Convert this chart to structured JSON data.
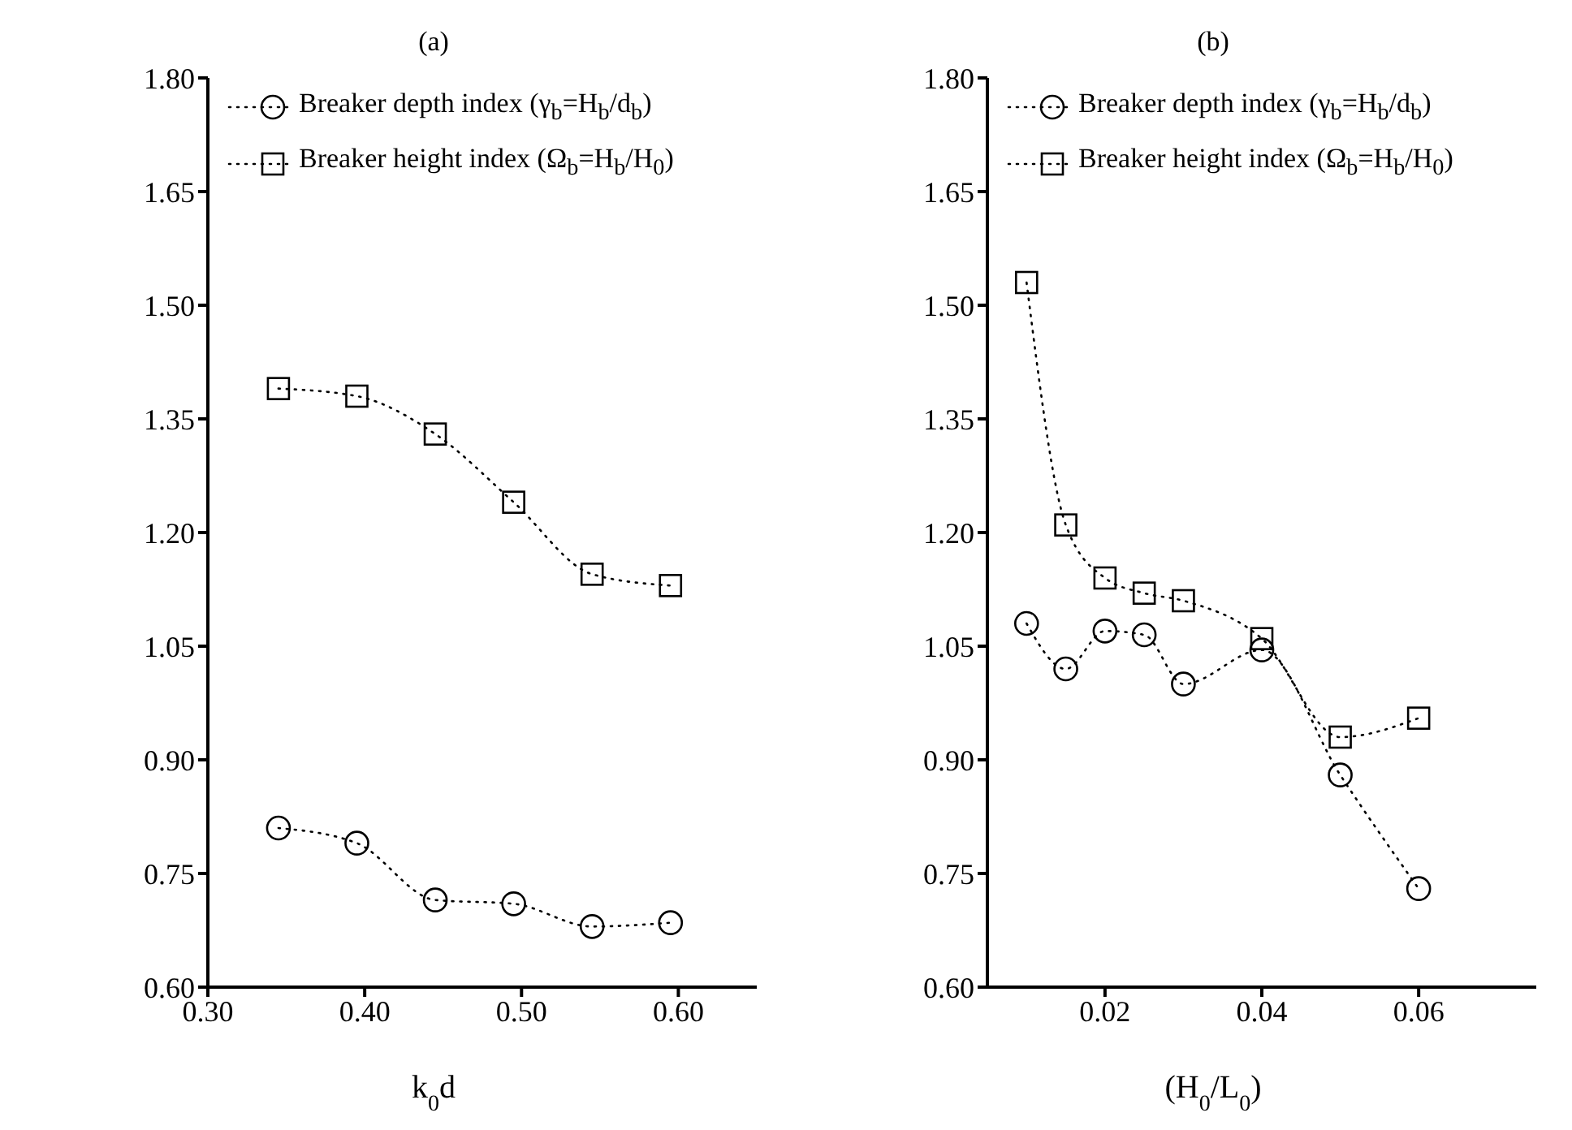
{
  "chart_data": [
    {
      "type": "line",
      "title": "(a)",
      "xlabel": "k$_{0}$d",
      "x": [
        0.345,
        0.395,
        0.445,
        0.495,
        0.545,
        0.595
      ],
      "series": [
        {
          "name": "Breaker depth index (γ$_{b}$=H$_{b}$/d$_{b}$)",
          "color": "#000000",
          "marker": "circle",
          "values": [
            0.81,
            0.79,
            0.715,
            0.71,
            0.68,
            0.685
          ]
        },
        {
          "name": "Breaker height index (Ω$_{b}$=H$_{b}$/H$_{0}$)",
          "color": "#000000",
          "marker": "square",
          "values": [
            1.39,
            1.38,
            1.33,
            1.24,
            1.145,
            1.13
          ]
        }
      ],
      "xlim": [
        0.3,
        0.65
      ],
      "xticks": [
        {
          "value": 0.3,
          "label": "0.30"
        },
        {
          "value": 0.4,
          "label": "0.40"
        },
        {
          "value": 0.5,
          "label": "0.50"
        },
        {
          "value": 0.6,
          "label": "0.60"
        }
      ],
      "ylim": [
        0.6,
        1.8
      ],
      "yticks": [
        {
          "value": 0.6,
          "label": "0.60"
        },
        {
          "value": 0.75,
          "label": "0.75"
        },
        {
          "value": 0.9,
          "label": "0.90"
        },
        {
          "value": 1.05,
          "label": "1.05"
        },
        {
          "value": 1.2,
          "label": "1.20"
        },
        {
          "value": 1.35,
          "label": "1.35"
        },
        {
          "value": 1.5,
          "label": "1.50"
        },
        {
          "value": 1.65,
          "label": "1.65"
        },
        {
          "value": 1.8,
          "label": "1.80"
        }
      ],
      "legend": "top",
      "line_style": "dotted"
    },
    {
      "type": "line",
      "title": "(b)",
      "xlabel": "(H$_{0}$/L$_{0}$)",
      "x": [
        0.01,
        0.015,
        0.02,
        0.025,
        0.03,
        0.04,
        0.05,
        0.06
      ],
      "series": [
        {
          "name": "Breaker depth index (γ$_{b}$=H$_{b}$/d$_{b}$)",
          "color": "#000000",
          "marker": "circle",
          "values": [
            1.08,
            1.02,
            1.07,
            1.065,
            1.0,
            1.045,
            0.88,
            0.73
          ]
        },
        {
          "name": "Breaker height index (Ω$_{b}$=H$_{b}$/H$_{0}$)",
          "color": "#000000",
          "marker": "square",
          "values": [
            1.53,
            1.21,
            1.14,
            1.12,
            1.11,
            1.06,
            0.93,
            0.955
          ]
        }
      ],
      "xlim": [
        0.005,
        0.075
      ],
      "xticks": [
        0.02,
        0.04,
        0.06
      ],
      "ylim": [
        0.6,
        1.8
      ],
      "yticks": [
        {
          "value": 0.6,
          "label": "0.60"
        },
        {
          "value": 0.75,
          "label": "0.75"
        },
        {
          "value": 0.9,
          "label": "0.90"
        },
        {
          "value": 1.05,
          "label": "1.05"
        },
        {
          "value": 1.2,
          "label": "1.20"
        },
        {
          "value": 1.35,
          "label": "1.35"
        },
        {
          "value": 1.5,
          "label": "1.50"
        },
        {
          "value": 1.65,
          "label": "1.65"
        },
        {
          "value": 1.8,
          "label": "1.80"
        }
      ],
      "legend": "top",
      "line_style": "dotted"
    }
  ]
}
